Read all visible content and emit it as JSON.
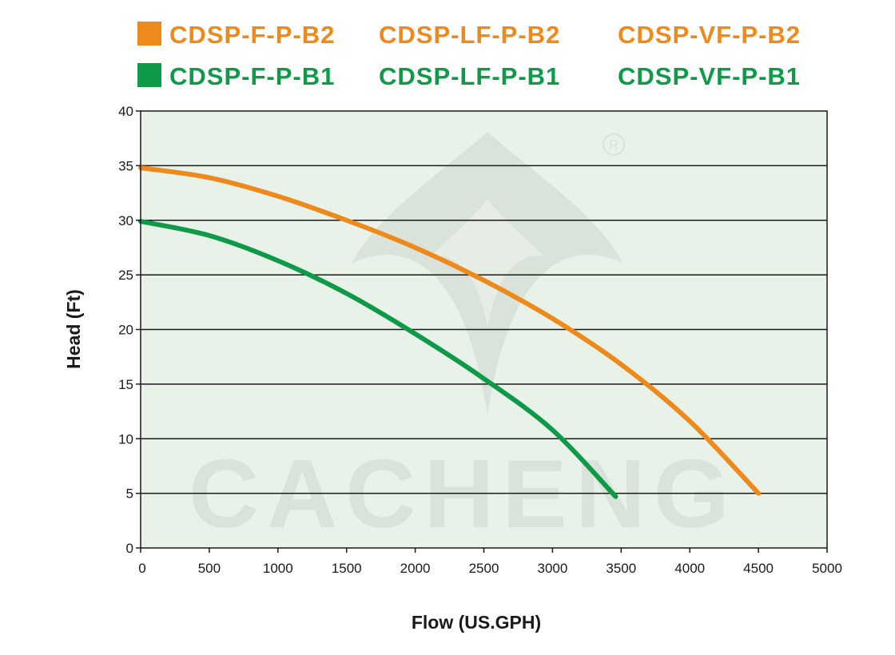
{
  "chart_data": {
    "type": "line",
    "xlabel": "Flow (US.GPH)",
    "ylabel": "Head (Ft)",
    "xlim": [
      0,
      5000
    ],
    "ylim": [
      0,
      40
    ],
    "xticks": [
      0,
      500,
      1000,
      1500,
      2000,
      2500,
      3000,
      3500,
      4000,
      4500,
      5000
    ],
    "yticks": [
      0,
      5,
      10,
      15,
      20,
      25,
      30,
      35,
      40
    ],
    "grid": "horizontal",
    "background_color": "#e9f2e8",
    "legend_placement": "top",
    "legend": [
      {
        "color": "#ee8a1c",
        "labels": [
          "CDSP-F-P-B2",
          "CDSP-LF-P-B2",
          "CDSP-VF-P-B2"
        ]
      },
      {
        "color": "#0e9a48",
        "labels": [
          "CDSP-F-P-B1",
          "CDSP-LF-P-B1",
          "CDSP-VF-P-B1"
        ]
      }
    ],
    "series": [
      {
        "color": "#ee8a1c",
        "x": [
          0,
          500,
          1000,
          1500,
          2000,
          2500,
          3000,
          3500,
          4000,
          4500
        ],
        "y": [
          34.8,
          33.9,
          32.2,
          30.0,
          27.5,
          24.5,
          21.0,
          16.8,
          11.6,
          5.0
        ]
      },
      {
        "color": "#0e9a48",
        "x": [
          0,
          500,
          1000,
          1500,
          2000,
          2500,
          3000,
          3460
        ],
        "y": [
          29.9,
          28.6,
          26.3,
          23.3,
          19.6,
          15.5,
          10.8,
          4.7
        ]
      }
    ],
    "watermark": "CACHENG"
  }
}
